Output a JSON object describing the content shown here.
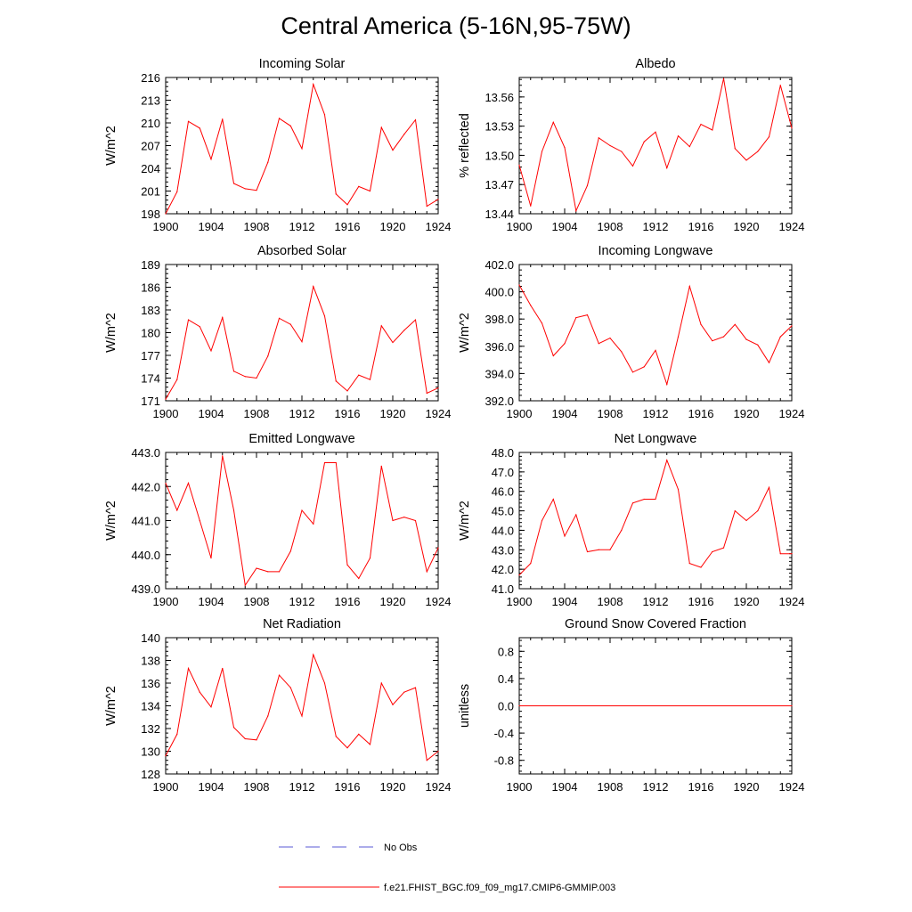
{
  "title": "Central America (5-16N,95-75W)",
  "colors": {
    "model_line": "#ff0000",
    "obs_line": "#5a5ad6",
    "axis": "#000000"
  },
  "legend": {
    "obs_label": "No Obs",
    "model_label": "f.e21.FHIST_BGC.f09_f09_mg17.CMIP6-GMMIP.003"
  },
  "chart_data": [
    {
      "type": "line",
      "title": "Incoming Solar",
      "ylabel": "W/m^2",
      "xlim": [
        1900,
        1924
      ],
      "xticks": [
        1900,
        1904,
        1908,
        1912,
        1916,
        1920,
        1924
      ],
      "ylim": [
        198,
        216
      ],
      "yticks": [
        198,
        201,
        204,
        207,
        210,
        213,
        216
      ],
      "ytick_labels": [
        "198",
        "201",
        "204",
        "207",
        "210",
        "213",
        "216"
      ],
      "x": [
        1900,
        1901,
        1902,
        1903,
        1904,
        1905,
        1906,
        1907,
        1908,
        1909,
        1910,
        1911,
        1912,
        1913,
        1914,
        1915,
        1916,
        1917,
        1918,
        1919,
        1920,
        1921,
        1922,
        1923,
        1924
      ],
      "values": [
        198.0,
        200.9,
        210.2,
        209.3,
        205.2,
        210.5,
        202.0,
        201.3,
        201.1,
        204.8,
        210.6,
        209.6,
        206.6,
        215.1,
        211.1,
        200.6,
        199.2,
        201.6,
        201.0,
        209.4,
        206.4,
        208.5,
        210.4,
        199.0,
        199.9
      ]
    },
    {
      "type": "line",
      "title": "Albedo",
      "ylabel": "% reflected",
      "xlim": [
        1900,
        1924
      ],
      "xticks": [
        1900,
        1904,
        1908,
        1912,
        1916,
        1920,
        1924
      ],
      "ylim": [
        13.44,
        13.58
      ],
      "yticks": [
        13.44,
        13.47,
        13.5,
        13.53,
        13.56
      ],
      "ytick_labels": [
        "13.44",
        "13.47",
        "13.50",
        "13.53",
        "13.56"
      ],
      "x": [
        1900,
        1901,
        1902,
        1903,
        1904,
        1905,
        1906,
        1907,
        1908,
        1909,
        1910,
        1911,
        1912,
        1913,
        1914,
        1915,
        1916,
        1917,
        1918,
        1919,
        1920,
        1921,
        1922,
        1923,
        1924
      ],
      "values": [
        13.49,
        13.448,
        13.504,
        13.534,
        13.508,
        13.443,
        13.469,
        13.518,
        13.51,
        13.504,
        13.489,
        13.514,
        13.524,
        13.487,
        13.52,
        13.509,
        13.532,
        13.526,
        13.579,
        13.507,
        13.495,
        13.504,
        13.519,
        13.572,
        13.528
      ]
    },
    {
      "type": "line",
      "title": "Absorbed Solar",
      "ylabel": "W/m^2",
      "xlim": [
        1900,
        1924
      ],
      "xticks": [
        1900,
        1904,
        1908,
        1912,
        1916,
        1920,
        1924
      ],
      "ylim": [
        171,
        189
      ],
      "yticks": [
        171,
        174,
        177,
        180,
        183,
        186,
        189
      ],
      "ytick_labels": [
        "171",
        "174",
        "177",
        "180",
        "183",
        "186",
        "189"
      ],
      "x": [
        1900,
        1901,
        1902,
        1903,
        1904,
        1905,
        1906,
        1907,
        1908,
        1909,
        1910,
        1911,
        1912,
        1913,
        1914,
        1915,
        1916,
        1917,
        1918,
        1919,
        1920,
        1921,
        1922,
        1923,
        1924
      ],
      "values": [
        171.2,
        173.8,
        181.7,
        180.8,
        177.6,
        182.0,
        174.9,
        174.2,
        174.0,
        176.9,
        181.9,
        181.1,
        178.8,
        186.1,
        182.2,
        173.6,
        172.3,
        174.4,
        173.8,
        180.9,
        178.7,
        180.3,
        181.7,
        172.0,
        172.7
      ]
    },
    {
      "type": "line",
      "title": "Incoming Longwave",
      "ylabel": "W/m^2",
      "xlim": [
        1900,
        1924
      ],
      "xticks": [
        1900,
        1904,
        1908,
        1912,
        1916,
        1920,
        1924
      ],
      "ylim": [
        392.0,
        402.0
      ],
      "yticks": [
        392.0,
        394.0,
        396.0,
        398.0,
        400.0,
        402.0
      ],
      "ytick_labels": [
        "392.0",
        "394.0",
        "396.0",
        "398.0",
        "400.0",
        "402.0"
      ],
      "x": [
        1900,
        1901,
        1902,
        1903,
        1904,
        1905,
        1906,
        1907,
        1908,
        1909,
        1910,
        1911,
        1912,
        1913,
        1914,
        1915,
        1916,
        1917,
        1918,
        1919,
        1920,
        1921,
        1922,
        1923,
        1924
      ],
      "values": [
        400.5,
        399.0,
        397.7,
        395.3,
        396.2,
        398.1,
        398.3,
        396.2,
        396.6,
        395.6,
        394.1,
        394.5,
        395.7,
        393.2,
        396.7,
        400.4,
        397.6,
        396.4,
        396.7,
        397.6,
        396.5,
        396.1,
        394.8,
        396.7,
        397.5
      ]
    },
    {
      "type": "line",
      "title": "Emitted Longwave",
      "ylabel": "W/m^2",
      "xlim": [
        1900,
        1924
      ],
      "xticks": [
        1900,
        1904,
        1908,
        1912,
        1916,
        1920,
        1924
      ],
      "ylim": [
        439.0,
        443.0
      ],
      "yticks": [
        439.0,
        440.0,
        441.0,
        442.0,
        443.0
      ],
      "ytick_labels": [
        "439.0",
        "440.0",
        "441.0",
        "442.0",
        "443.0"
      ],
      "x": [
        1900,
        1901,
        1902,
        1903,
        1904,
        1905,
        1906,
        1907,
        1908,
        1909,
        1910,
        1911,
        1912,
        1913,
        1914,
        1915,
        1916,
        1917,
        1918,
        1919,
        1920,
        1921,
        1922,
        1923,
        1924
      ],
      "values": [
        442.1,
        441.3,
        442.1,
        441.0,
        439.9,
        442.9,
        441.3,
        439.1,
        439.6,
        439.5,
        439.5,
        440.1,
        441.3,
        440.9,
        442.7,
        442.7,
        439.7,
        439.3,
        439.9,
        442.6,
        441.0,
        441.1,
        441.0,
        439.5,
        440.2
      ]
    },
    {
      "type": "line",
      "title": "Net Longwave",
      "ylabel": "W/m^2",
      "xlim": [
        1900,
        1924
      ],
      "xticks": [
        1900,
        1904,
        1908,
        1912,
        1916,
        1920,
        1924
      ],
      "ylim": [
        41.0,
        48.0
      ],
      "yticks": [
        41.0,
        42.0,
        43.0,
        44.0,
        45.0,
        46.0,
        47.0,
        48.0
      ],
      "ytick_labels": [
        "41.0",
        "42.0",
        "43.0",
        "44.0",
        "45.0",
        "46.0",
        "47.0",
        "48.0"
      ],
      "x": [
        1900,
        1901,
        1902,
        1903,
        1904,
        1905,
        1906,
        1907,
        1908,
        1909,
        1910,
        1911,
        1912,
        1913,
        1914,
        1915,
        1916,
        1917,
        1918,
        1919,
        1920,
        1921,
        1922,
        1923,
        1924
      ],
      "values": [
        41.7,
        42.3,
        44.5,
        45.6,
        43.7,
        44.8,
        42.9,
        43.0,
        43.0,
        44.0,
        45.4,
        45.6,
        45.6,
        47.6,
        46.1,
        42.3,
        42.1,
        42.9,
        43.1,
        45.0,
        44.5,
        45.0,
        46.2,
        42.8,
        42.8
      ]
    },
    {
      "type": "line",
      "title": "Net Radiation",
      "ylabel": "W/m^2",
      "xlim": [
        1900,
        1924
      ],
      "xticks": [
        1900,
        1904,
        1908,
        1912,
        1916,
        1920,
        1924
      ],
      "ylim": [
        128,
        140
      ],
      "yticks": [
        128,
        130,
        132,
        134,
        136,
        138,
        140
      ],
      "ytick_labels": [
        "128",
        "130",
        "132",
        "134",
        "136",
        "138",
        "140"
      ],
      "x": [
        1900,
        1901,
        1902,
        1903,
        1904,
        1905,
        1906,
        1907,
        1908,
        1909,
        1910,
        1911,
        1912,
        1913,
        1914,
        1915,
        1916,
        1917,
        1918,
        1919,
        1920,
        1921,
        1922,
        1923,
        1924
      ],
      "values": [
        129.6,
        131.5,
        137.3,
        135.2,
        133.9,
        137.3,
        132.1,
        131.1,
        131.0,
        133.1,
        136.7,
        135.6,
        133.1,
        138.5,
        136.0,
        131.3,
        130.3,
        131.5,
        130.6,
        136.0,
        134.1,
        135.2,
        135.6,
        129.2,
        130.0
      ]
    },
    {
      "type": "line",
      "title": "Ground Snow Covered Fraction",
      "ylabel": "unitless",
      "xlim": [
        1900,
        1924
      ],
      "xticks": [
        1900,
        1904,
        1908,
        1912,
        1916,
        1920,
        1924
      ],
      "ylim": [
        -1.0,
        1.0
      ],
      "yticks": [
        -0.8,
        -0.4,
        0.0,
        0.4,
        0.8
      ],
      "ytick_labels": [
        "-0.8",
        "-0.4",
        "0.0",
        "0.4",
        "0.8"
      ],
      "x": [
        1900,
        1924
      ],
      "values": [
        0.0,
        0.0
      ]
    }
  ]
}
